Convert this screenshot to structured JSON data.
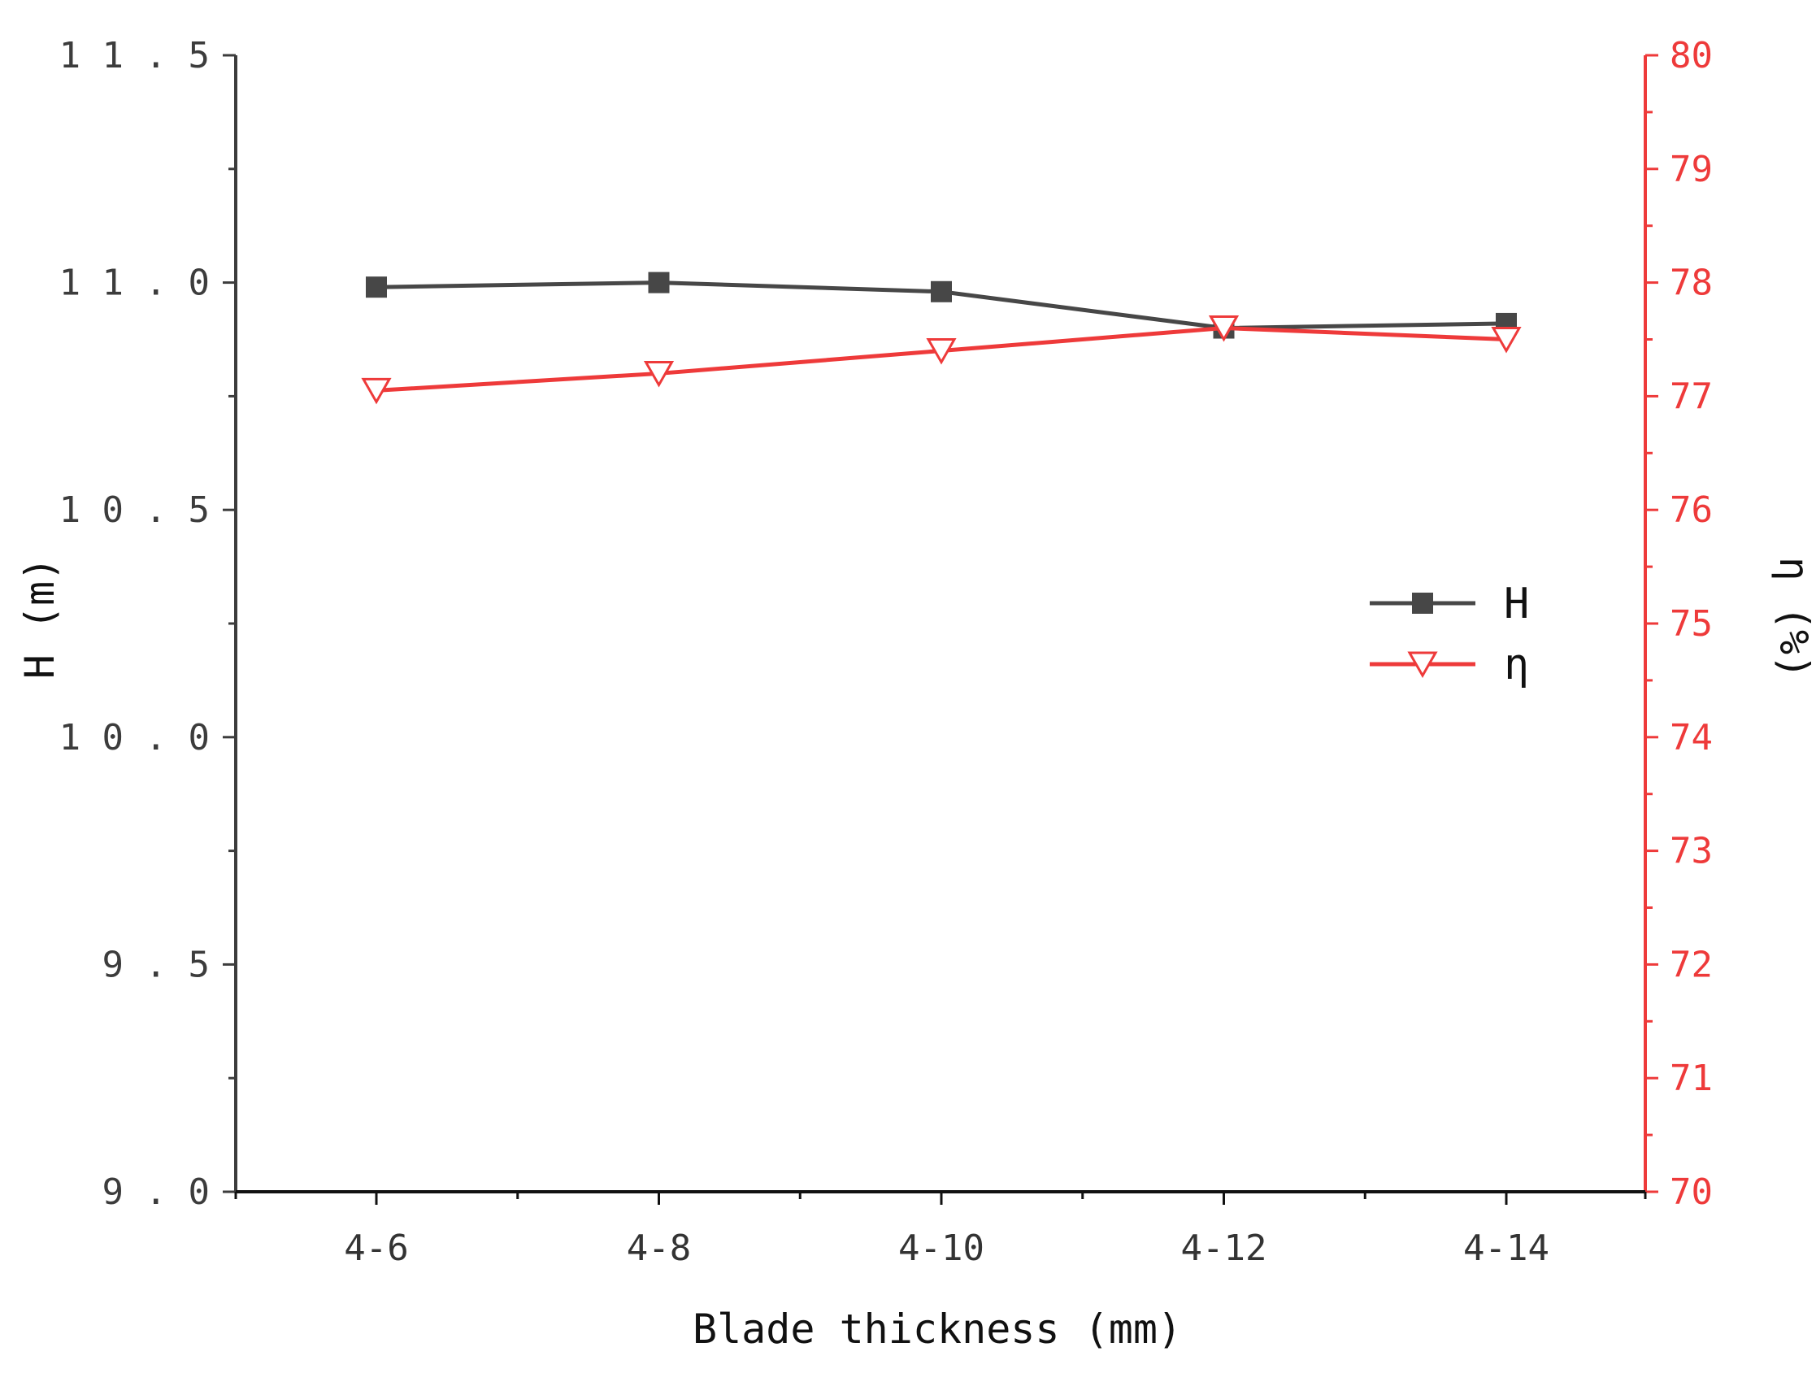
{
  "chart_data": {
    "type": "line",
    "xlabel": "Blade thickness (mm)",
    "categories": [
      "4-6",
      "4-8",
      "4-10",
      "4-12",
      "4-14"
    ],
    "y_left": {
      "label": "H (m)",
      "range": [
        9.0,
        11.5
      ],
      "ticks": [
        "9.0",
        "9.5",
        "10.0",
        "10.5",
        "11.0",
        "11.5"
      ],
      "color": "#3c3c3c"
    },
    "y_right": {
      "label": "η (%)",
      "range": [
        70,
        80
      ],
      "ticks": [
        "70",
        "71",
        "72",
        "73",
        "74",
        "75",
        "76",
        "77",
        "78",
        "79",
        "80"
      ],
      "color": "#ee3a3a"
    },
    "series": [
      {
        "name": "H",
        "axis": "left",
        "color": "#474747",
        "marker": "filled-square",
        "values": [
          10.99,
          11.0,
          10.98,
          10.9,
          10.91
        ]
      },
      {
        "name": "η",
        "axis": "right",
        "color": "#ee3a3a",
        "marker": "open-down-triangle",
        "values": [
          77.05,
          77.2,
          77.4,
          77.6,
          77.5
        ]
      }
    ],
    "legend": {
      "position": "center-right",
      "entries": [
        "H",
        "η"
      ]
    },
    "grid": false
  }
}
